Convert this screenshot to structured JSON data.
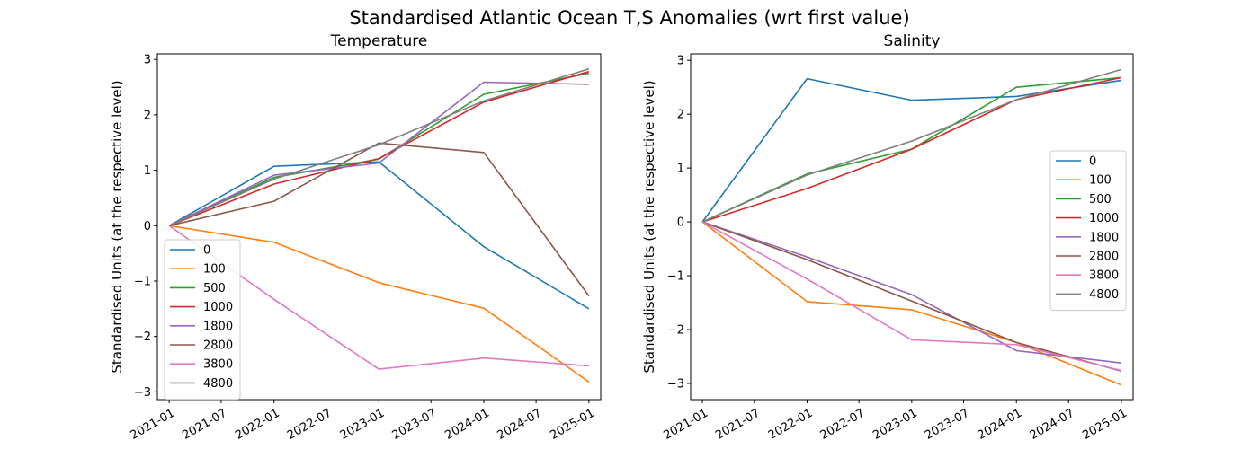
{
  "figure": {
    "suptitle": "Standardised Atlantic Ocean T,S Anomalies (wrt first value)"
  },
  "chart_data": [
    {
      "type": "line",
      "title": "Temperature",
      "xlabel": "",
      "ylabel": "Standardised Units (at the respective level)",
      "x": [
        "2021-01",
        "2022-01",
        "2023-01",
        "2024-01",
        "2025-01"
      ],
      "xticks": [
        "2021-01",
        "2021-07",
        "2022-01",
        "2022-07",
        "2023-01",
        "2023-07",
        "2024-01",
        "2024-07",
        "2025-01"
      ],
      "yticks": [
        -3,
        -2,
        -1,
        0,
        1,
        2,
        3
      ],
      "ylim": [
        -3.14,
        3.1
      ],
      "xlim": [
        "2020-11-21",
        "2025-02-11"
      ],
      "grid": false,
      "legend_position": "lower-left",
      "series": [
        {
          "name": "0",
          "color": "#1f77b4",
          "values": [
            0,
            1.07,
            1.15,
            -0.38,
            -1.5
          ]
        },
        {
          "name": "100",
          "color": "#ff7f0e",
          "values": [
            0,
            -0.3,
            -1.03,
            -1.49,
            -2.82
          ]
        },
        {
          "name": "500",
          "color": "#2ca02c",
          "values": [
            0,
            0.87,
            1.2,
            2.37,
            2.75
          ]
        },
        {
          "name": "1000",
          "color": "#d62728",
          "values": [
            0,
            0.75,
            1.21,
            2.23,
            2.78
          ]
        },
        {
          "name": "1800",
          "color": "#9467bd",
          "values": [
            0,
            0.91,
            1.13,
            2.59,
            2.55
          ]
        },
        {
          "name": "2800",
          "color": "#8c564b",
          "values": [
            0,
            0.44,
            1.49,
            1.32,
            -1.27
          ]
        },
        {
          "name": "3800",
          "color": "#e377c2",
          "values": [
            0,
            -1.33,
            -2.59,
            -2.39,
            -2.53
          ]
        },
        {
          "name": "4800",
          "color": "#7f7f7f",
          "values": [
            0,
            0.84,
            1.46,
            2.25,
            2.83
          ]
        }
      ]
    },
    {
      "type": "line",
      "title": "Salinity",
      "xlabel": "",
      "ylabel": "Standardised Units (at the respective level)",
      "x": [
        "2021-01",
        "2022-01",
        "2023-01",
        "2024-01",
        "2025-01"
      ],
      "xticks": [
        "2021-01",
        "2021-07",
        "2022-01",
        "2022-07",
        "2023-01",
        "2023-07",
        "2024-01",
        "2024-07",
        "2025-01"
      ],
      "yticks": [
        -3,
        -2,
        -1,
        0,
        1,
        2,
        3
      ],
      "ylim": [
        -3.3,
        3.12
      ],
      "xlim": [
        "2020-11-21",
        "2025-02-11"
      ],
      "grid": false,
      "legend_position": "center-right",
      "series": [
        {
          "name": "0",
          "color": "#1f77b4",
          "values": [
            0,
            2.66,
            2.26,
            2.33,
            2.63
          ]
        },
        {
          "name": "100",
          "color": "#ff7f0e",
          "values": [
            0,
            -1.48,
            -1.63,
            -2.24,
            -3.03
          ]
        },
        {
          "name": "500",
          "color": "#2ca02c",
          "values": [
            0,
            0.89,
            1.35,
            2.5,
            2.68
          ]
        },
        {
          "name": "1000",
          "color": "#d62728",
          "values": [
            0,
            0.62,
            1.35,
            2.27,
            2.68
          ]
        },
        {
          "name": "1800",
          "color": "#9467bd",
          "values": [
            0,
            -0.65,
            -1.35,
            -2.39,
            -2.62
          ]
        },
        {
          "name": "2800",
          "color": "#8c564b",
          "values": [
            0,
            -0.7,
            -1.47,
            -2.24,
            -2.77
          ]
        },
        {
          "name": "3800",
          "color": "#e377c2",
          "values": [
            0,
            -1.06,
            -2.19,
            -2.28,
            -2.76
          ]
        },
        {
          "name": "4800",
          "color": "#7f7f7f",
          "values": [
            0,
            0.87,
            1.5,
            2.27,
            2.83
          ]
        }
      ]
    }
  ]
}
